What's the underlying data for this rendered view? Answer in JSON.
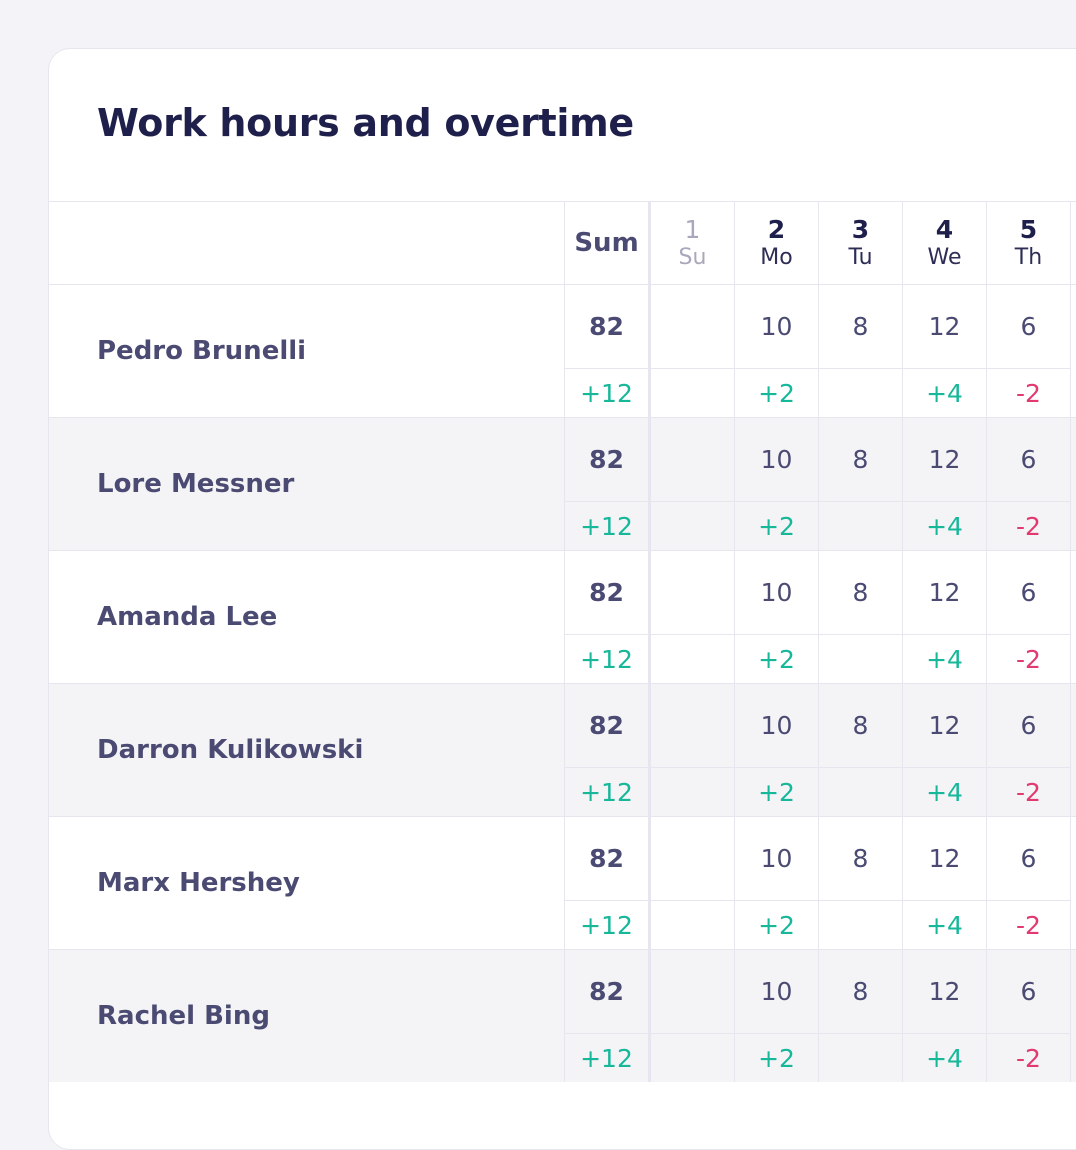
{
  "title": "Work hours and overtime",
  "columns": {
    "sum_label": "Sum",
    "days": [
      {
        "num": "1",
        "name": "Su",
        "weekend": true
      },
      {
        "num": "2",
        "name": "Mo",
        "weekend": false
      },
      {
        "num": "3",
        "name": "Tu",
        "weekend": false
      },
      {
        "num": "4",
        "name": "We",
        "weekend": false
      },
      {
        "num": "5",
        "name": "Th",
        "weekend": false
      }
    ]
  },
  "rows": [
    {
      "name": "Pedro Brunelli",
      "sum": "82",
      "sum_overtime": "+12",
      "hours": [
        "",
        "10",
        "8",
        "12",
        "6"
      ],
      "overtime": [
        "",
        "+2",
        "",
        "+4",
        "-2"
      ]
    },
    {
      "name": "Lore Messner",
      "sum": "82",
      "sum_overtime": "+12",
      "hours": [
        "",
        "10",
        "8",
        "12",
        "6"
      ],
      "overtime": [
        "",
        "+2",
        "",
        "+4",
        "-2"
      ]
    },
    {
      "name": "Amanda Lee",
      "sum": "82",
      "sum_overtime": "+12",
      "hours": [
        "",
        "10",
        "8",
        "12",
        "6"
      ],
      "overtime": [
        "",
        "+2",
        "",
        "+4",
        "-2"
      ]
    },
    {
      "name": "Darron Kulikowski",
      "sum": "82",
      "sum_overtime": "+12",
      "hours": [
        "",
        "10",
        "8",
        "12",
        "6"
      ],
      "overtime": [
        "",
        "+2",
        "",
        "+4",
        "-2"
      ]
    },
    {
      "name": "Marx Hershey",
      "sum": "82",
      "sum_overtime": "+12",
      "hours": [
        "",
        "10",
        "8",
        "12",
        "6"
      ],
      "overtime": [
        "",
        "+2",
        "",
        "+4",
        "-2"
      ]
    },
    {
      "name": "Rachel Bing",
      "sum": "82",
      "sum_overtime": "+12",
      "hours": [
        "",
        "10",
        "8",
        "12",
        "6"
      ],
      "overtime": [
        "",
        "+2",
        "",
        "+4",
        "-2"
      ]
    }
  ],
  "colors": {
    "positive": "#17b79a",
    "negative": "#e23a6f",
    "title": "#1f1f4b",
    "shaded_row": "#f4f4f7"
  }
}
